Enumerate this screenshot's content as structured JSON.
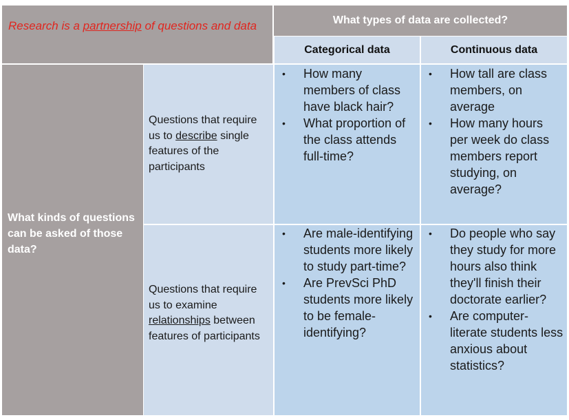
{
  "title": {
    "part1": "Research is a ",
    "underlined": "partnership",
    "part2": " of questions and data"
  },
  "header": {
    "top": "What types of data are collected?",
    "col1": "Categorical data",
    "col2": "Continuous data"
  },
  "left_header": "What kinds of questions can be asked of those data?",
  "rows": [
    {
      "label_part1": "Questions that require us to ",
      "label_underlined": "describe",
      "label_part2": " single features of the participants",
      "categorical": [
        "How many members of class have black hair?",
        "What proportion of the class attends full-time?"
      ],
      "continuous": [
        "How tall are class members, on average",
        "How many hours per week do class members report studying, on average?"
      ]
    },
    {
      "label_part1": "Questions that require us to examine ",
      "label_underlined": "relationships",
      "label_part2": " between features of participants",
      "categorical": [
        "Are male-identifying students more likely to study part-time?",
        "Are PrevSci PhD students more likely to be female-identifying?"
      ],
      "continuous": [
        "Do people who say they study for more hours also think they'll finish their doctorate earlier?",
        "Are computer-literate students less anxious about statistics?"
      ]
    }
  ],
  "bullet_symbol": "•",
  "colors": {
    "header_grey": "#a6a0a0",
    "label_blue": "#cfdcec",
    "cell_blue": "#bcd4eb",
    "title_red": "#e0261f"
  }
}
